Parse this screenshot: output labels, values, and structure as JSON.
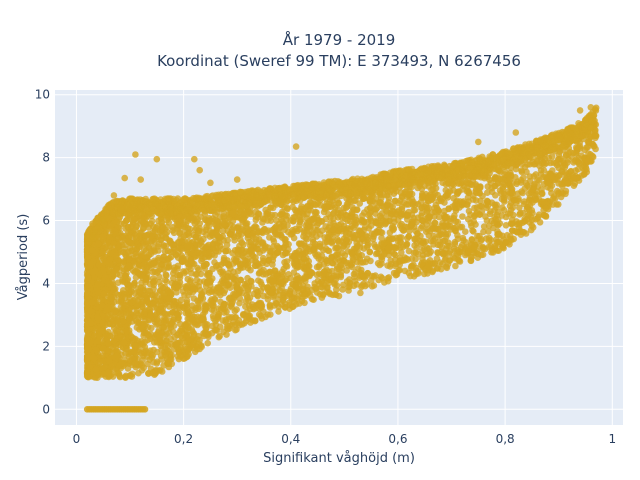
{
  "chart_data": {
    "type": "scatter",
    "title_line1": "År 1979 - 2019",
    "title_line2": "Koordinat (Sweref 99 TM): E 373493, N 6267456",
    "xlabel": "Signifikant våghöjd (m)",
    "ylabel": "Vågperiod (s)",
    "xlim": [
      -0.04,
      1.02
    ],
    "ylim": [
      -0.5,
      10.15
    ],
    "x_ticks": [
      0,
      0.2,
      0.4,
      0.6,
      0.8,
      1
    ],
    "x_tick_labels": [
      "0",
      "0,2",
      "0,4",
      "0,6",
      "0,8",
      "1"
    ],
    "y_ticks": [
      0,
      2,
      4,
      6,
      8,
      10
    ],
    "y_tick_labels": [
      "0",
      "2",
      "4",
      "6",
      "8",
      "10"
    ],
    "grid": true,
    "point_color": "#d4a520",
    "plot_bg": "#e5ecf6",
    "bands": [
      {
        "x": [
          0.02,
          0.04,
          0.06,
          0.08,
          0.1,
          0.12,
          0.15,
          0.2,
          0.25,
          0.3,
          0.35,
          0.4,
          0.45,
          0.5,
          0.55,
          0.6,
          0.65,
          0.7,
          0.75,
          0.8,
          0.85,
          0.9,
          0.95,
          0.97
        ],
        "low": [
          1.0,
          1.0,
          1.0,
          1.0,
          1.0,
          1.05,
          1.1,
          1.6,
          2.1,
          2.5,
          2.9,
          3.2,
          3.5,
          3.7,
          3.9,
          4.1,
          4.3,
          4.5,
          4.8,
          5.1,
          5.7,
          6.5,
          7.4,
          8.2
        ],
        "high": [
          5.6,
          6.1,
          6.5,
          6.7,
          6.7,
          6.7,
          6.7,
          6.7,
          6.8,
          6.9,
          7.0,
          7.1,
          7.2,
          7.3,
          7.4,
          7.6,
          7.7,
          7.8,
          8.0,
          8.2,
          8.5,
          8.8,
          9.2,
          9.6
        ]
      }
    ],
    "zero_row": {
      "x_from": 0.02,
      "x_to": 0.13,
      "y": 0
    },
    "outliers": [
      {
        "x": 0.11,
        "y": 8.1
      },
      {
        "x": 0.15,
        "y": 7.95
      },
      {
        "x": 0.12,
        "y": 7.3
      },
      {
        "x": 0.22,
        "y": 7.95
      },
      {
        "x": 0.23,
        "y": 7.6
      },
      {
        "x": 0.41,
        "y": 8.35
      },
      {
        "x": 0.09,
        "y": 7.35
      },
      {
        "x": 0.07,
        "y": 6.8
      },
      {
        "x": 0.25,
        "y": 7.2
      },
      {
        "x": 0.16,
        "y": 1.2
      },
      {
        "x": 0.17,
        "y": 1.5
      },
      {
        "x": 0.02,
        "y": 2.7
      },
      {
        "x": 0.03,
        "y": 5.9
      },
      {
        "x": 0.3,
        "y": 7.3
      },
      {
        "x": 0.75,
        "y": 8.5
      },
      {
        "x": 0.82,
        "y": 8.8
      },
      {
        "x": 0.94,
        "y": 9.5
      },
      {
        "x": 0.96,
        "y": 9.6
      },
      {
        "x": 0.49,
        "y": 3.6
      },
      {
        "x": 0.53,
        "y": 3.7
      },
      {
        "x": 0.44,
        "y": 3.5
      }
    ]
  }
}
